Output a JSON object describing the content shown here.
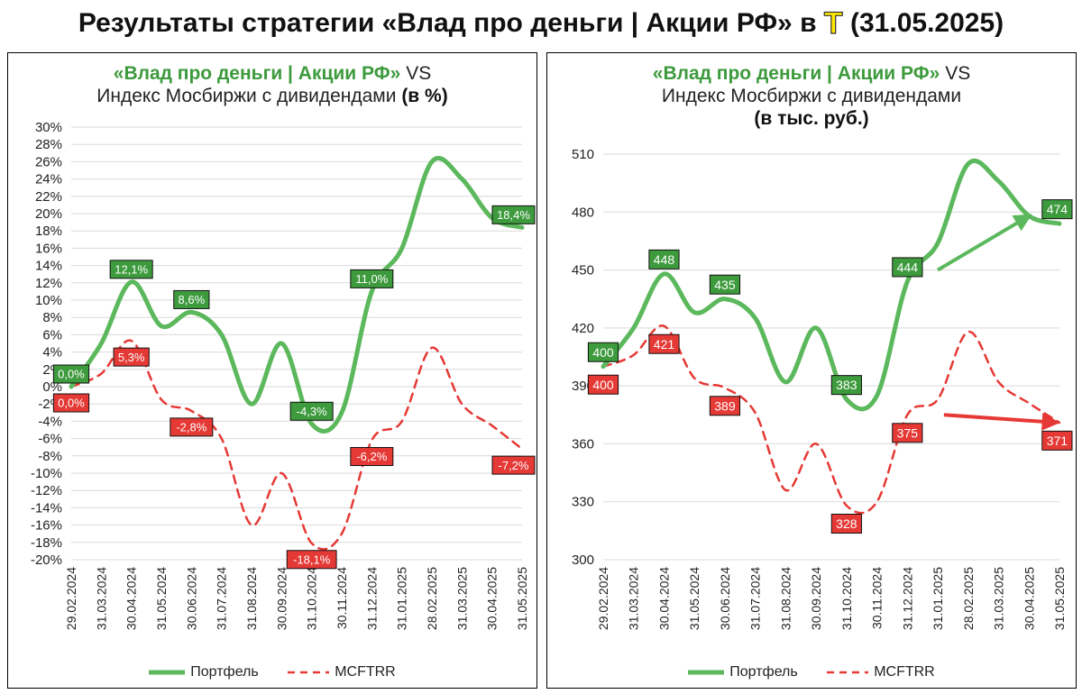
{
  "title": {
    "prefix": "Результаты стратегии «Влад про деньги | Акции РФ» в",
    "logo": "Т",
    "suffix": "(31.05.2025)"
  },
  "colors": {
    "portfolio": "#5cb85c",
    "index": "#e53935",
    "label_green": "#3d9a3d",
    "label_red": "#e53935"
  },
  "legend": {
    "portfolio": "Портфель",
    "index": "MCFTRR"
  },
  "chart_data": [
    {
      "type": "line",
      "title_brand": "«Влад про деньги | Акции РФ»",
      "title_vs": " VS",
      "title_line2": "Индекс Мосбиржи с дивидендами",
      "title_unit": "(в %)",
      "title_line3": "",
      "categories": [
        "29.02.2024",
        "31.03.2024",
        "30.04.2024",
        "31.05.2024",
        "30.06.2024",
        "31.07.2024",
        "31.08.2024",
        "30.09.2024",
        "31.10.2024",
        "30.11.2024",
        "31.12.2024",
        "31.01.2025",
        "28.02.2025",
        "31.03.2025",
        "30.04.2025",
        "31.05.2025"
      ],
      "ylim": [
        -20,
        30
      ],
      "yticks": [
        -20,
        -18,
        -16,
        -14,
        -12,
        -10,
        -8,
        -6,
        -4,
        -2,
        0,
        2,
        4,
        6,
        8,
        10,
        12,
        14,
        16,
        18,
        20,
        22,
        24,
        26,
        28,
        30
      ],
      "tick_suffix": "%",
      "series": [
        {
          "name": "Портфель",
          "values": [
            0.0,
            5.0,
            12.1,
            7.0,
            8.6,
            6.0,
            -2.0,
            5.0,
            -4.3,
            -3.0,
            11.0,
            16.0,
            26.0,
            24.0,
            19.5,
            18.4
          ]
        },
        {
          "name": "MCFTRR",
          "values": [
            0.0,
            1.5,
            5.3,
            -1.5,
            -2.8,
            -6.0,
            -16.0,
            -10.0,
            -18.1,
            -17.0,
            -6.2,
            -4.0,
            4.5,
            -2.0,
            -4.5,
            -7.2
          ]
        }
      ],
      "annotations": {
        "Портфель": [
          {
            "i": 0,
            "text": "0,0%"
          },
          {
            "i": 2,
            "text": "12,1%"
          },
          {
            "i": 4,
            "text": "8,6%"
          },
          {
            "i": 8,
            "text": "-4,3%"
          },
          {
            "i": 10,
            "text": "11,0%"
          },
          {
            "i": 15,
            "text": "18,4%"
          }
        ],
        "MCFTRR": [
          {
            "i": 0,
            "text": "0,0%"
          },
          {
            "i": 2,
            "text": "5,3%"
          },
          {
            "i": 4,
            "text": "-2,8%"
          },
          {
            "i": 8,
            "text": "-18,1%"
          },
          {
            "i": 10,
            "text": "-6,2%"
          },
          {
            "i": 15,
            "text": "-7,2%"
          }
        ]
      },
      "arrows": []
    },
    {
      "type": "line",
      "title_brand": "«Влад про деньги | Акции РФ»",
      "title_vs": " VS",
      "title_line2": "Индекс Мосбиржи с дивидендами",
      "title_unit": "",
      "title_line3": "(в тыс. руб.)",
      "categories": [
        "29.02.2024",
        "31.03.2024",
        "30.04.2024",
        "31.05.2024",
        "30.06.2024",
        "31.07.2024",
        "31.08.2024",
        "30.09.2024",
        "31.10.2024",
        "30.11.2024",
        "31.12.2024",
        "31.01.2025",
        "28.02.2025",
        "31.03.2025",
        "30.04.2025",
        "31.05.2025"
      ],
      "ylim": [
        300,
        510
      ],
      "yticks": [
        300,
        330,
        360,
        390,
        420,
        450,
        480,
        510
      ],
      "tick_suffix": "",
      "series": [
        {
          "name": "Портфель",
          "values": [
            400,
            420,
            448,
            428,
            435,
            425,
            392,
            420,
            383,
            385,
            444,
            464,
            505,
            496,
            478,
            474
          ]
        },
        {
          "name": "MCFTRR",
          "values": [
            400,
            406,
            421,
            394,
            389,
            376,
            336,
            360,
            328,
            330,
            375,
            383,
            418,
            392,
            381,
            371
          ]
        }
      ],
      "annotations": {
        "Портфель": [
          {
            "i": 0,
            "text": "400"
          },
          {
            "i": 2,
            "text": "448"
          },
          {
            "i": 4,
            "text": "435"
          },
          {
            "i": 8,
            "text": "383"
          },
          {
            "i": 10,
            "text": "444"
          },
          {
            "i": 15,
            "text": "474"
          }
        ],
        "MCFTRR": [
          {
            "i": 0,
            "text": "400"
          },
          {
            "i": 2,
            "text": "421"
          },
          {
            "i": 4,
            "text": "389"
          },
          {
            "i": 8,
            "text": "328"
          },
          {
            "i": 10,
            "text": "375"
          },
          {
            "i": 15,
            "text": "371"
          }
        ]
      },
      "arrows": [
        {
          "series": "Портфель",
          "from": [
            11.0,
            450
          ],
          "to": [
            14.0,
            478
          ]
        },
        {
          "series": "MCFTRR",
          "from": [
            11.2,
            375
          ],
          "to": [
            14.9,
            371
          ]
        }
      ]
    }
  ]
}
